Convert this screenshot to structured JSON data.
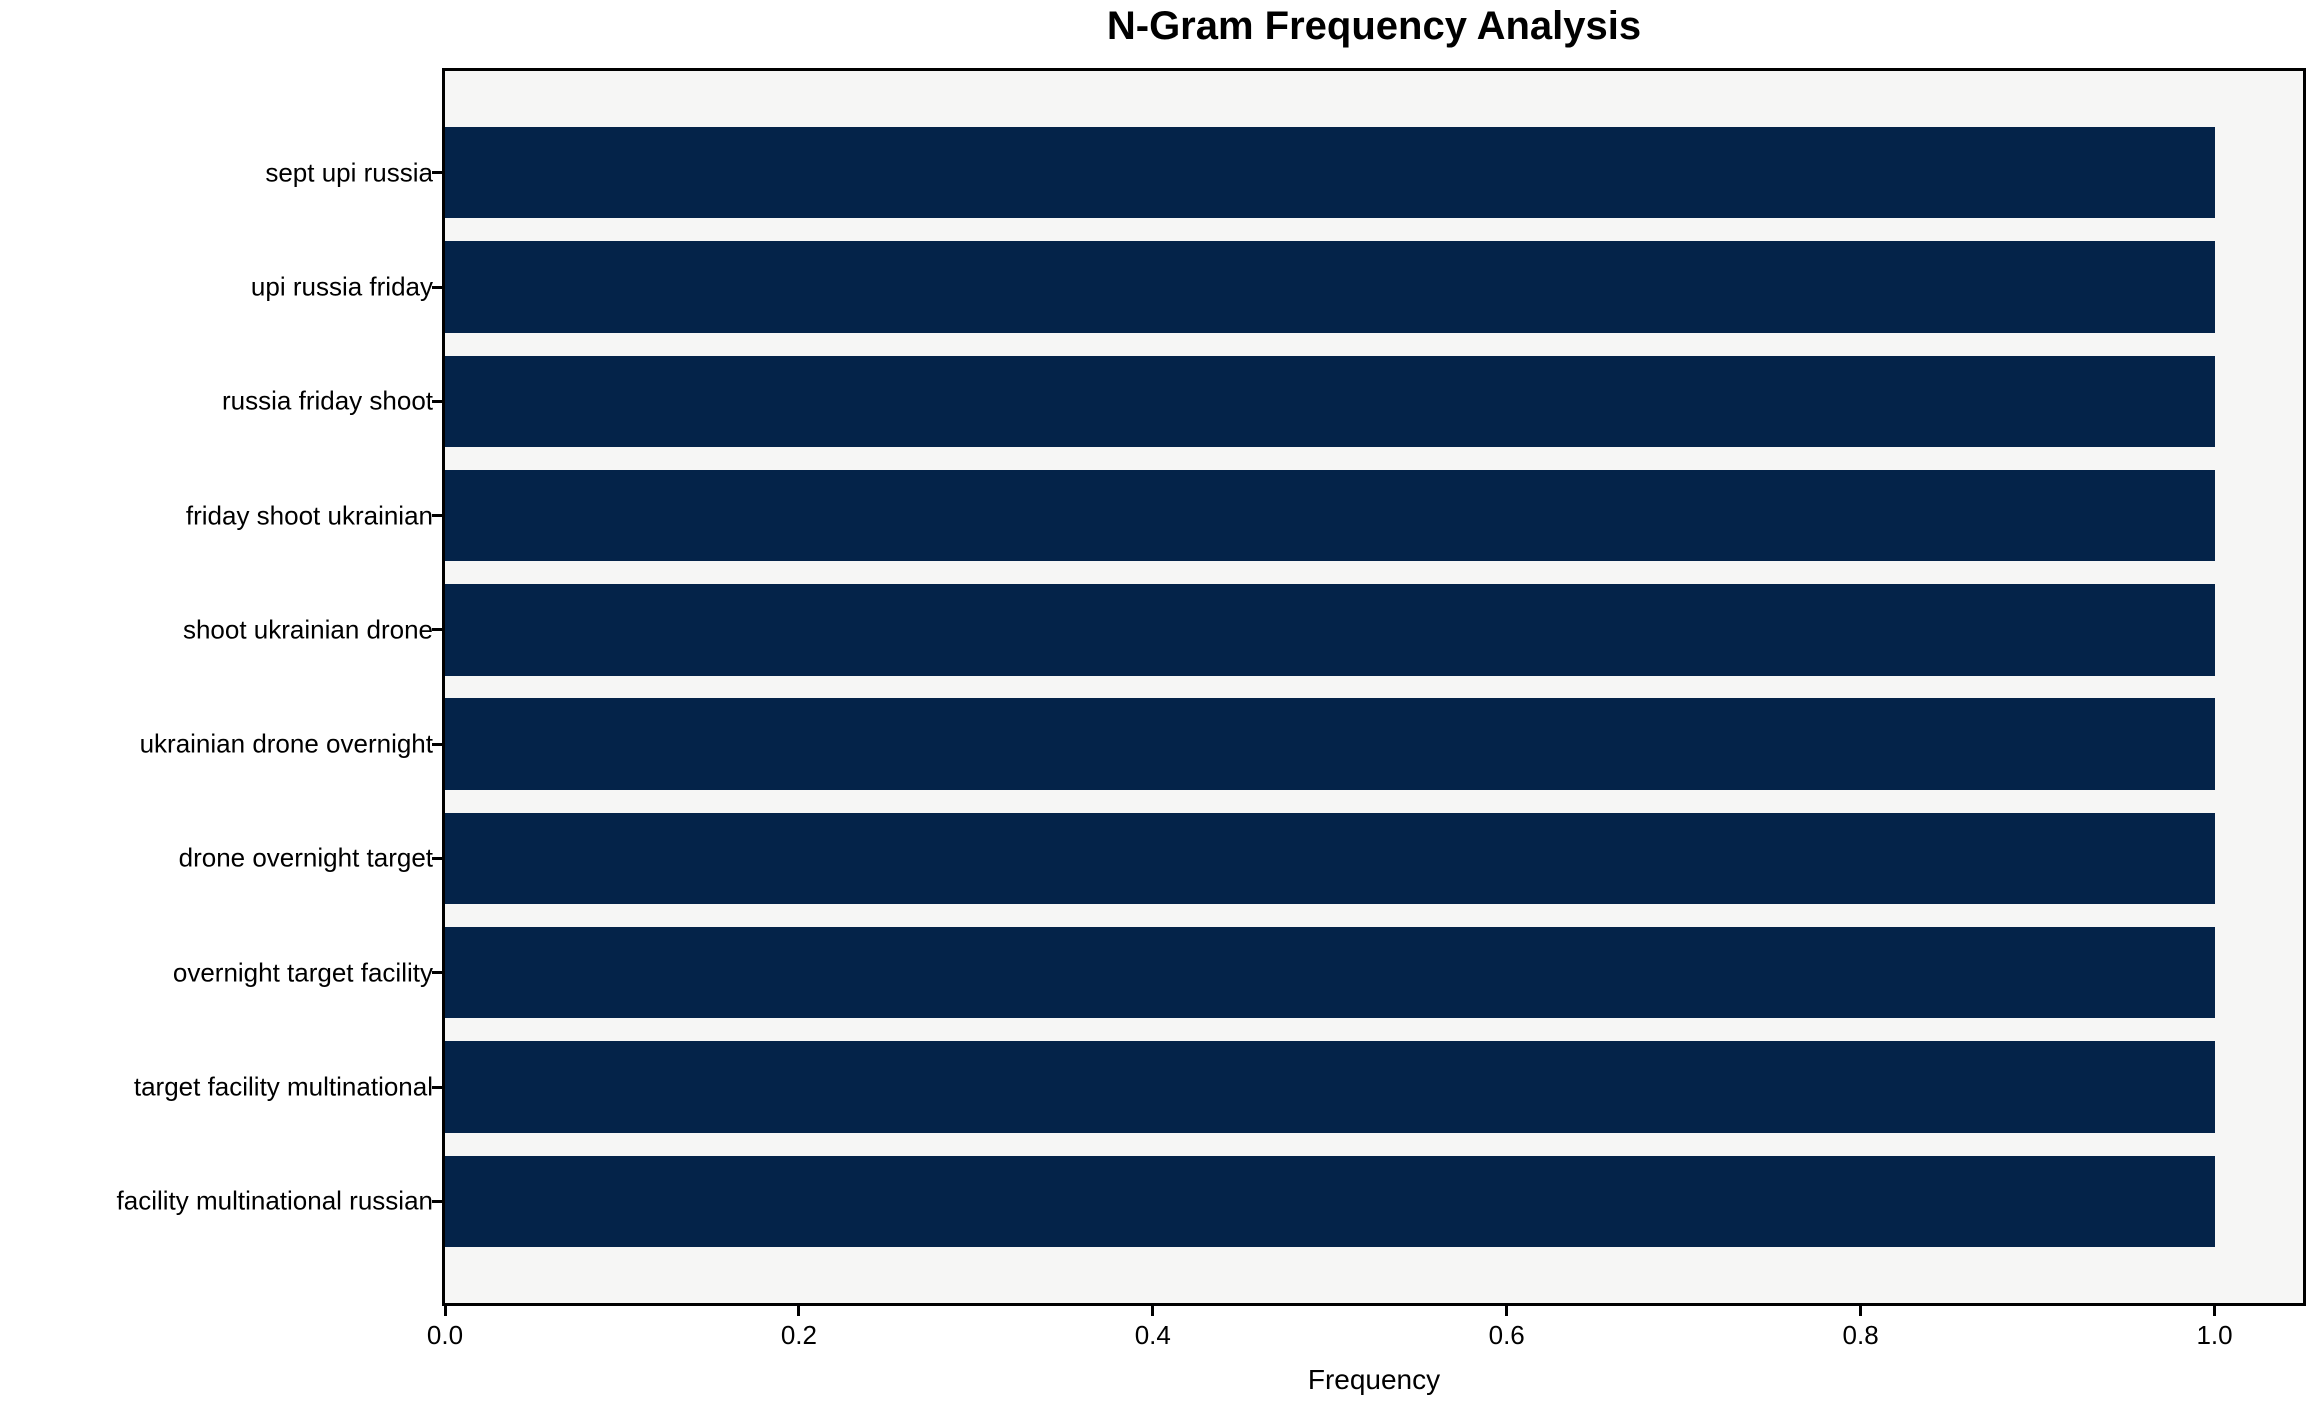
{
  "figure": {
    "title": "N-Gram Frequency Analysis"
  },
  "chart_data": {
    "type": "bar",
    "orientation": "horizontal",
    "title": "N-Gram Frequency Analysis",
    "xlabel": "Frequency",
    "ylabel": "",
    "categories": [
      "sept upi russia",
      "upi russia friday",
      "russia friday shoot",
      "friday shoot ukrainian",
      "shoot ukrainian drone",
      "ukrainian drone overnight",
      "drone overnight target",
      "overnight target facility",
      "target facility multinational",
      "facility multinational russian"
    ],
    "values": [
      1.0,
      1.0,
      1.0,
      1.0,
      1.0,
      1.0,
      1.0,
      1.0,
      1.0,
      1.0
    ],
    "xlim": [
      0.0,
      1.05
    ],
    "xticks": [
      0.0,
      0.2,
      0.4,
      0.6,
      0.8,
      1.0
    ],
    "xtick_labels": [
      "0.0",
      "0.2",
      "0.4",
      "0.6",
      "0.8",
      "1.0"
    ],
    "bar_height_fraction": 0.8,
    "grid": false,
    "legend": "none",
    "colors": {
      "bar": "#042349",
      "plot_background": "#f6f6f5",
      "figure_background": "#ffffff",
      "spine": "#000000",
      "text": "#000000"
    }
  }
}
